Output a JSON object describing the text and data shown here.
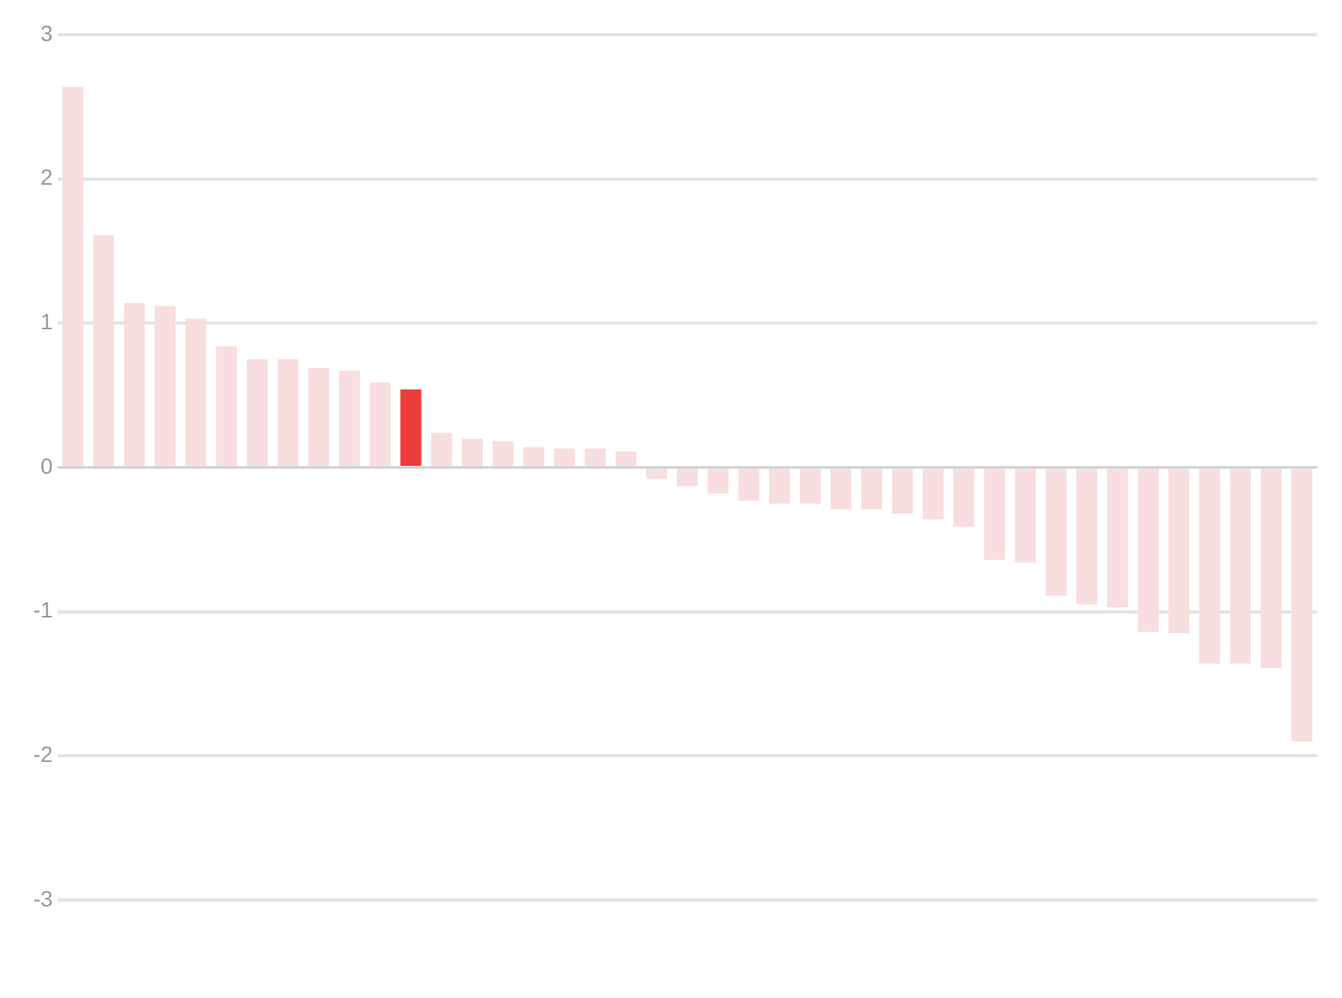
{
  "chart_data": {
    "type": "bar",
    "categories": [
      null,
      null,
      null,
      null,
      null,
      null,
      null,
      null,
      null,
      null,
      null,
      null,
      null,
      null,
      null,
      null,
      null,
      null,
      null,
      null,
      null,
      null,
      null,
      null,
      null,
      null,
      null,
      null,
      null,
      null,
      null,
      null,
      null,
      null,
      null,
      null,
      null,
      null,
      null,
      null,
      null
    ],
    "values": [
      2.64,
      1.61,
      1.14,
      1.12,
      1.03,
      0.84,
      0.75,
      0.75,
      0.69,
      0.67,
      0.59,
      0.54,
      0.24,
      0.2,
      0.18,
      0.14,
      0.13,
      0.13,
      0.11,
      -0.08,
      -0.13,
      -0.18,
      -0.23,
      -0.25,
      -0.25,
      -0.29,
      -0.29,
      -0.32,
      -0.36,
      -0.41,
      -0.64,
      -0.66,
      -0.89,
      -0.95,
      -0.97,
      -1.14,
      -1.15,
      -1.36,
      -1.36,
      -1.39,
      -1.9
    ],
    "colors": [
      "#f8dede",
      "#f8dede",
      "#f8dede",
      "#f8dede",
      "#f8dede",
      "#f8dede",
      "#f8dede",
      "#f8dede",
      "#f8dede",
      "#f8dede",
      "#f8dede",
      "#ee3b3b",
      "#f8dede",
      "#f8dede",
      "#f8dede",
      "#f8dede",
      "#f8dede",
      "#f8dede",
      "#f8dede",
      "#f8dede",
      "#f8dede",
      "#f8dede",
      "#f8dede",
      "#f8dede",
      "#f8dede",
      "#f8dede",
      "#f8dede",
      "#f8dede",
      "#f8dede",
      "#f8dede",
      "#f8dede",
      "#f8dede",
      "#f8dede",
      "#f8dede",
      "#f8dede",
      "#f8dede",
      "#f8dede",
      "#f8dede",
      "#f8dede",
      "#f8dede",
      "#f8dede"
    ],
    "ylim": [
      -3,
      3
    ],
    "yticks": [
      -3,
      -2,
      -1,
      0,
      1,
      2,
      3
    ],
    "grid": "y",
    "legend": false
  }
}
